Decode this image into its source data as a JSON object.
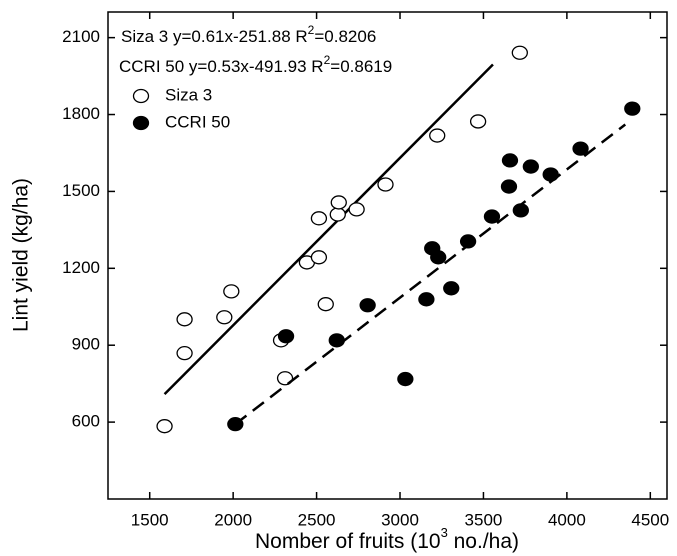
{
  "chart_data": {
    "type": "scatter",
    "x_label": {
      "text": "Nomber of fruits (10",
      "sup": "3",
      "tail": " no./ha)"
    },
    "y_label": "Lint yield (kg/ha)",
    "annotations": [
      {
        "text": "Siza 3  y=0.61x-251.88 R",
        "sup": "2",
        "tail": "=0.8206"
      },
      {
        "text": "CCRI 50  y=0.53x-491.93 R",
        "sup": "2",
        "tail": "=0.8619"
      }
    ],
    "xlim": [
      1250,
      4600
    ],
    "ylim": [
      300,
      2200
    ],
    "xticks": [
      1500,
      2000,
      2500,
      3000,
      3500,
      4000,
      4500
    ],
    "yticks": [
      600,
      900,
      1200,
      1500,
      1800,
      2100
    ],
    "grid": false,
    "legend": "upper left",
    "series": [
      {
        "name": "Siza 3",
        "color": "#000000",
        "marker": "open",
        "x": [
          1589,
          1709,
          1709,
          1947,
          1989,
          2287,
          2311,
          2442,
          2514,
          2514,
          2555,
          2627,
          2633,
          2740,
          2913,
          3223,
          3468,
          3718
        ],
        "values": [
          584,
          1001,
          869,
          1009,
          1110,
          919,
          771,
          1223,
          1243,
          1395,
          1060,
          1410,
          1457,
          1430,
          1527,
          1718,
          1773,
          2041
        ],
        "trendline": {
          "x": [
            1589,
            3557
          ],
          "values": [
            709,
            1995
          ],
          "dash": false
        }
      },
      {
        "name": "CCRI 50",
        "color": "#000000",
        "marker": "filled",
        "x": [
          2013,
          2317,
          2621,
          2806,
          3032,
          3158,
          3193,
          3229,
          3307,
          3408,
          3551,
          3653,
          3659,
          3724,
          3784,
          3903,
          4082,
          4392
        ],
        "values": [
          592,
          935,
          919,
          1056,
          768,
          1079,
          1278,
          1243,
          1122,
          1305,
          1402,
          1519,
          1621,
          1426,
          1597,
          1566,
          1667,
          1823
        ],
        "trendline": {
          "x": [
            2013,
            4350
          ],
          "values": [
            592,
            1761
          ],
          "dash": true
        }
      }
    ]
  }
}
